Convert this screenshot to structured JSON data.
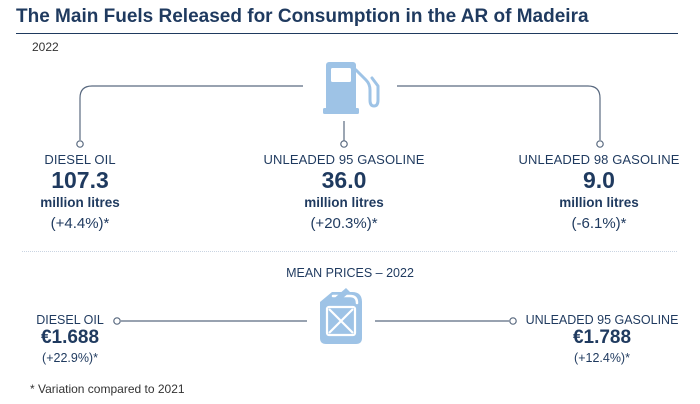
{
  "header": {
    "title": "The Main Fuels Released for Consumption in the AR of Madeira",
    "year": "2022"
  },
  "consumption": [
    {
      "name": "DIESEL OIL",
      "value": "107.3",
      "unit": "million litres",
      "variation": "(+4.4%)*"
    },
    {
      "name": "UNLEADED 95 GASOLINE",
      "value": "36.0",
      "unit": "million litres",
      "variation": "(+20.3%)*"
    },
    {
      "name": "UNLEADED 98 GASOLINE",
      "value": "9.0",
      "unit": "million litres",
      "variation": "(-6.1%)*"
    }
  ],
  "prices": {
    "title": "MEAN PRICES – 2022",
    "items": [
      {
        "name": "DIESEL OIL",
        "value": "€1.688",
        "variation": "(+22.9%)*"
      },
      {
        "name": "UNLEADED 95 GASOLINE",
        "value": "€1.788",
        "variation": "(+12.4%)*"
      }
    ]
  },
  "footnote": "* Variation compared to 2021",
  "icons": {
    "top": "fuel-pump-icon",
    "bottom": "jerrycan-icon"
  },
  "colors": {
    "navy": "#1f3a5f",
    "icon": "#9ec3e6",
    "line": "#5a6a80"
  }
}
